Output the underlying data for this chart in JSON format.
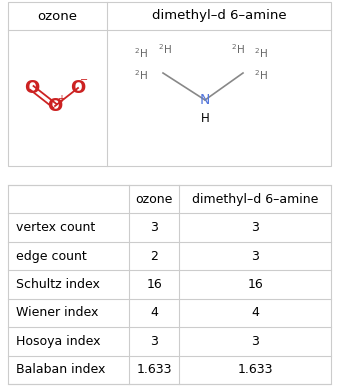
{
  "top_headers": [
    "ozone",
    "dimethyl–d 6–amine"
  ],
  "row_labels": [
    "vertex count",
    "edge count",
    "Schultz index",
    "Wiener index",
    "Hosoya index",
    "Balaban index"
  ],
  "ozone_values": [
    "3",
    "2",
    "16",
    "4",
    "3",
    "1.633"
  ],
  "dimethyl_values": [
    "3",
    "3",
    "16",
    "4",
    "3",
    "1.633"
  ],
  "bg_color": "#ffffff",
  "border_color": "#cccccc",
  "text_color": "#000000",
  "ozone_color": "#cc2222",
  "N_color": "#5577dd",
  "mol_line_color": "#888888",
  "h2_color": "#666666"
}
